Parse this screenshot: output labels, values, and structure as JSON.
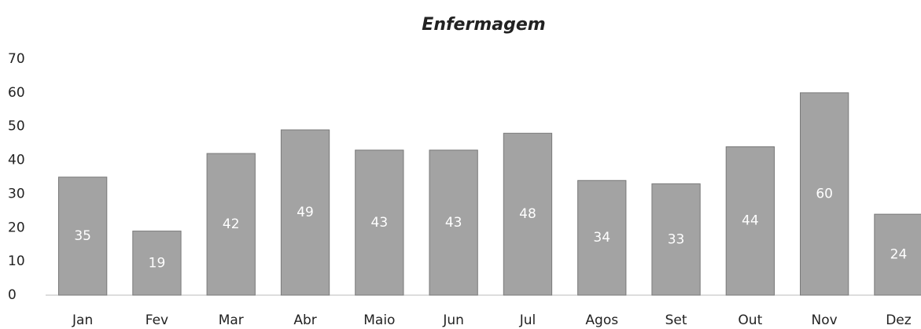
{
  "chart_data": {
    "type": "bar",
    "title": "Enfermagem",
    "categories": [
      "Jan",
      "Fev",
      "Mar",
      "Abr",
      "Maio",
      "Jun",
      "Jul",
      "Agos",
      "Set",
      "Out",
      "Nov",
      "Dez"
    ],
    "values": [
      35,
      19,
      42,
      49,
      43,
      43,
      48,
      34,
      33,
      44,
      60,
      24
    ],
    "color": "#a3a3a3",
    "ylim": [
      0,
      70
    ],
    "yticks": [
      0,
      10,
      20,
      30,
      40,
      50,
      60,
      70
    ],
    "grid": false
  }
}
